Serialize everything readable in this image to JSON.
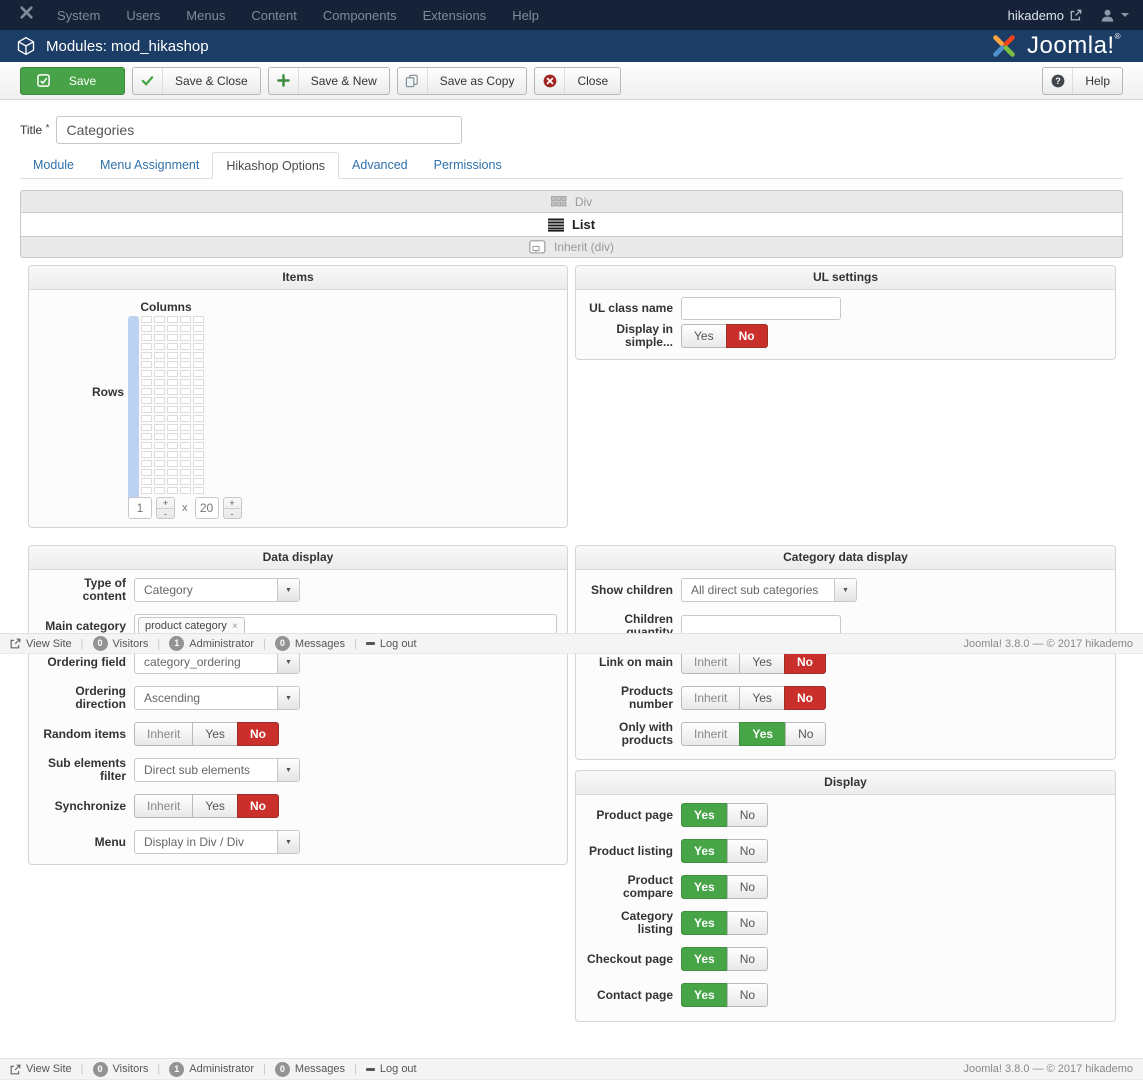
{
  "topbar": {
    "menu": [
      "System",
      "Users",
      "Menus",
      "Content",
      "Components",
      "Extensions",
      "Help"
    ],
    "username": "hikademo"
  },
  "header": {
    "app_title": "Modules: mod_hikashop",
    "logo_text": "Joomla!",
    "logo_reg": "®"
  },
  "toolbar": {
    "save": "Save",
    "save_and_close": "Save & Close",
    "save_and_new": "Save & New",
    "save_as_copy": "Save as Copy",
    "close": "Close",
    "help": "Help"
  },
  "form": {
    "title_label": "Title",
    "required_mark": "*",
    "title_value": "Categories",
    "tabs": [
      "Module",
      "Menu Assignment",
      "Hikashop Options",
      "Advanced",
      "Permissions"
    ],
    "active_tab": "Hikashop Options"
  },
  "layout_picker": {
    "options": [
      {
        "label": "Div"
      },
      {
        "label": "List"
      },
      {
        "label": "Inherit (div)"
      }
    ],
    "selected": "List"
  },
  "toggles": {
    "inherit": "Inherit",
    "yes": "Yes",
    "no": "No"
  },
  "panels": {
    "items": {
      "title": "Items",
      "columns_label": "Columns",
      "rows_label": "Rows",
      "grid_cols": 6,
      "grid_rows": 20,
      "selected_cols": 1,
      "columns_value": "1",
      "times": "x",
      "rows_value": "20"
    },
    "ul_settings": {
      "title": "UL settings",
      "ul_class": {
        "label": "UL class name",
        "value": ""
      },
      "display_simple": {
        "label": "Display in simple...",
        "value": "No"
      }
    },
    "data_display": {
      "title": "Data display",
      "type_of_content": {
        "label": "Type of content",
        "value": "Category"
      },
      "main_category": {
        "label": "Main category",
        "tag": "product category"
      },
      "ordering_field": {
        "label": "Ordering field",
        "value": "category_ordering"
      },
      "ordering_direction": {
        "label": "Ordering direction",
        "value": "Ascending"
      },
      "random_items": {
        "label": "Random items",
        "value": "No"
      },
      "sub_elements_filter": {
        "label": "Sub elements filter",
        "value": "Direct sub elements"
      },
      "synchronize": {
        "label": "Synchronize",
        "value": "No"
      },
      "menu": {
        "label": "Menu",
        "value": "Display in Div / Div"
      }
    },
    "category_data_display": {
      "title": "Category data display",
      "show_children": {
        "label": "Show children",
        "value": "All direct sub categories"
      },
      "children_quantity": {
        "label": "Children quantity",
        "value": ""
      },
      "link_on_main": {
        "label": "Link on main",
        "value": "No"
      },
      "products_number": {
        "label": "Products number",
        "value": "No"
      },
      "only_with_products": {
        "label": "Only with products",
        "value": "Yes"
      }
    },
    "display": {
      "title": "Display",
      "rows": [
        {
          "label": "Product page",
          "value": "Yes"
        },
        {
          "label": "Product listing",
          "value": "Yes"
        },
        {
          "label": "Product compare",
          "value": "Yes"
        },
        {
          "label": "Category listing",
          "value": "Yes"
        },
        {
          "label": "Checkout page",
          "value": "Yes"
        },
        {
          "label": "Contact page",
          "value": "Yes"
        }
      ]
    }
  },
  "statusbar": {
    "view_site": "View Site",
    "visitors_count": "0",
    "visitors_label": "Visitors",
    "administrator_count": "1",
    "administrator_label": "Administrator",
    "messages_count": "0",
    "messages_label": "Messages",
    "logout_label": "Log out",
    "version": "Joomla! 3.8.0 — © 2017 hikademo"
  }
}
